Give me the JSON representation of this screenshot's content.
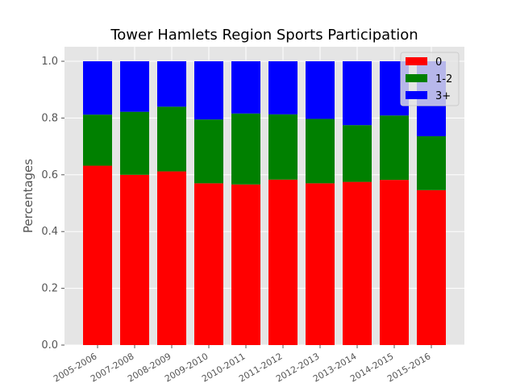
{
  "chart_data": {
    "type": "bar",
    "stacked": true,
    "title": "Tower Hamlets Region Sports Participation",
    "xlabel": "",
    "ylabel": "Percentages",
    "ylim": [
      0,
      1.05
    ],
    "yticks": [
      "0.0",
      "0.2",
      "0.4",
      "0.6",
      "0.8",
      "1.0"
    ],
    "grid": true,
    "legend_position": "top-right",
    "categories": [
      "2005-2006",
      "2007-2008",
      "2008-2009",
      "2009-2010",
      "2010-2011",
      "2011-2012",
      "2012-2013",
      "2013-2014",
      "2014-2015",
      "2015-2016"
    ],
    "series": [
      {
        "name": "0",
        "color": "#ff0000",
        "values": [
          0.632,
          0.6,
          0.612,
          0.57,
          0.566,
          0.583,
          0.57,
          0.575,
          0.582,
          0.546
        ]
      },
      {
        "name": "1-2",
        "color": "#008000",
        "values": [
          0.18,
          0.222,
          0.228,
          0.225,
          0.25,
          0.23,
          0.227,
          0.2,
          0.227,
          0.19
        ]
      },
      {
        "name": "3+",
        "color": "#0000ff",
        "values": [
          0.188,
          0.178,
          0.16,
          0.205,
          0.184,
          0.187,
          0.203,
          0.225,
          0.191,
          0.264
        ]
      }
    ]
  }
}
